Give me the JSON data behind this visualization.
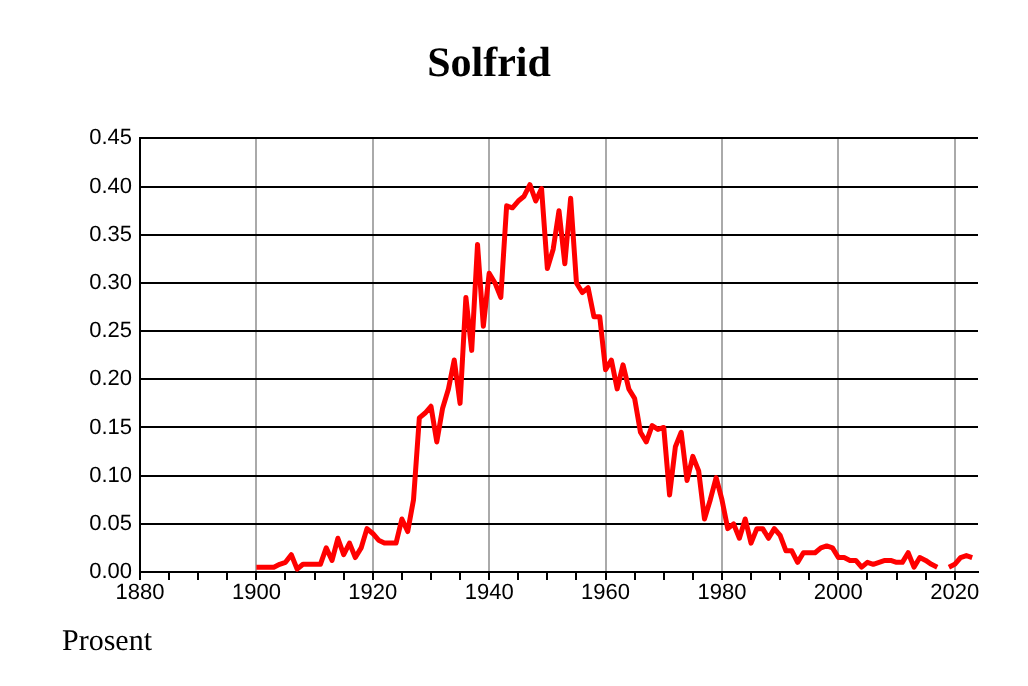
{
  "chart_data": {
    "type": "line",
    "title": "Solfrid",
    "ylabel": "Prosent",
    "x": [
      1900,
      1901,
      1902,
      1903,
      1904,
      1905,
      1906,
      1907,
      1908,
      1909,
      1910,
      1911,
      1912,
      1913,
      1914,
      1915,
      1916,
      1917,
      1918,
      1919,
      1920,
      1921,
      1922,
      1923,
      1924,
      1925,
      1926,
      1927,
      1928,
      1929,
      1930,
      1931,
      1932,
      1933,
      1934,
      1935,
      1936,
      1937,
      1938,
      1939,
      1940,
      1941,
      1942,
      1943,
      1944,
      1945,
      1946,
      1947,
      1948,
      1949,
      1950,
      1951,
      1952,
      1953,
      1954,
      1955,
      1956,
      1957,
      1958,
      1959,
      1960,
      1961,
      1962,
      1963,
      1964,
      1965,
      1966,
      1967,
      1968,
      1969,
      1970,
      1971,
      1972,
      1973,
      1974,
      1975,
      1976,
      1977,
      1978,
      1979,
      1980,
      1981,
      1982,
      1983,
      1984,
      1985,
      1986,
      1987,
      1988,
      1989,
      1990,
      1991,
      1992,
      1993,
      1994,
      1995,
      1996,
      1997,
      1998,
      1999,
      2000,
      2001,
      2002,
      2003,
      2004,
      2005,
      2006,
      2007,
      2008,
      2009,
      2010,
      2011,
      2012,
      2013,
      2014,
      2015,
      2016,
      2017
    ],
    "series": [
      {
        "color": "#ff0000",
        "values": [
          0.005,
          0.005,
          0.005,
          0.005,
          0.008,
          0.01,
          0.018,
          0.003,
          0.008,
          0.008,
          0.008,
          0.008,
          0.025,
          0.012,
          0.035,
          0.018,
          0.03,
          0.015,
          0.025,
          0.045,
          0.04,
          0.033,
          0.03,
          0.03,
          0.03,
          0.055,
          0.042,
          0.075,
          0.16,
          0.165,
          0.172,
          0.135,
          0.17,
          0.19,
          0.22,
          0.175,
          0.285,
          0.23,
          0.34,
          0.255,
          0.31,
          0.3,
          0.285,
          0.38,
          0.378,
          0.385,
          0.39,
          0.402,
          0.385,
          0.398,
          0.315,
          0.335,
          0.375,
          0.32,
          0.388,
          0.3,
          0.29,
          0.295,
          0.265,
          0.265,
          0.21,
          0.22,
          0.19,
          0.215,
          0.19,
          0.18,
          0.145,
          0.135,
          0.152,
          0.148,
          0.15,
          0.08,
          0.13,
          0.145,
          0.095,
          0.12,
          0.105,
          0.055,
          0.075,
          0.098,
          0.075,
          0.045,
          0.05,
          0.035,
          0.055,
          0.03,
          0.045,
          0.045,
          0.035,
          0.045,
          0.038,
          0.022,
          0.022,
          0.01,
          0.02,
          0.02,
          0.02,
          0.025,
          0.027,
          0.025,
          0.015,
          0.015,
          0.012,
          0.012,
          0.005,
          0.01,
          0.008,
          0.01,
          0.012,
          0.012,
          0.01,
          0.01,
          0.02,
          0.005,
          0.015,
          0.012,
          0.008,
          0.005
        ]
      },
      {
        "color": "#ff0000",
        "x": [
          2019,
          2020,
          2021,
          2022,
          2023
        ],
        "values": [
          0.005,
          0.008,
          0.015,
          0.017,
          0.015
        ]
      }
    ],
    "xlim": [
      1880,
      2024
    ],
    "xticks": [
      1880,
      {
        "value": 1885,
        "label": null
      },
      {
        "value": 1890,
        "label": null
      },
      {
        "value": 1895,
        "label": null
      },
      1900,
      {
        "value": 1905,
        "label": null
      },
      {
        "value": 1910,
        "label": null
      },
      {
        "value": 1915,
        "label": null
      },
      1920,
      {
        "value": 1925,
        "label": null
      },
      {
        "value": 1930,
        "label": null
      },
      {
        "value": 1935,
        "label": null
      },
      1940,
      {
        "value": 1945,
        "label": null
      },
      {
        "value": 1950,
        "label": null
      },
      {
        "value": 1955,
        "label": null
      },
      1960,
      {
        "value": 1965,
        "label": null
      },
      {
        "value": 1970,
        "label": null
      },
      {
        "value": 1975,
        "label": null
      },
      1980,
      {
        "value": 1985,
        "label": null
      },
      {
        "value": 1990,
        "label": null
      },
      {
        "value": 1995,
        "label": null
      },
      2000,
      {
        "value": 2005,
        "label": null
      },
      {
        "value": 2010,
        "label": null
      },
      {
        "value": 2015,
        "label": null
      },
      2020
    ],
    "ylim": [
      0,
      0.45
    ],
    "yticks": [
      {
        "value": 0,
        "label": "0.00"
      },
      {
        "value": 0.05,
        "label": "0.05"
      },
      {
        "value": 0.1,
        "label": "0.10"
      },
      {
        "value": 0.15,
        "label": "0.15"
      },
      {
        "value": 0.2,
        "label": "0.20"
      },
      {
        "value": 0.25,
        "label": "0.25"
      },
      {
        "value": 0.3,
        "label": "0.30"
      },
      {
        "value": 0.35,
        "label": "0.35"
      },
      {
        "value": 0.4,
        "label": "0.40"
      },
      {
        "value": 0.45,
        "label": "0.45"
      }
    ],
    "grid": true,
    "legend": false,
    "marker": "none",
    "line_style": "solid"
  }
}
